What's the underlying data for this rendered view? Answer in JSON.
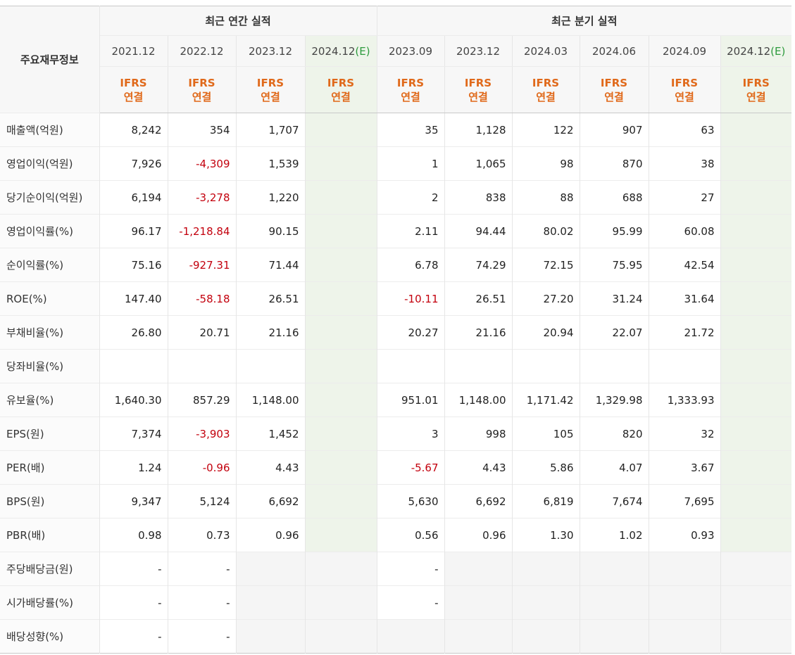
{
  "header": {
    "label_title": "주요재무정보",
    "annual_title": "최근 연간 실적",
    "quarter_title": "최근 분기 실적",
    "annual_periods": [
      "2021.12",
      "2022.12",
      "2023.12",
      "2024.12"
    ],
    "quarter_periods": [
      "2023.09",
      "2023.12",
      "2024.03",
      "2024.06",
      "2024.09",
      "2024.12"
    ],
    "estimate_mark": "(E)",
    "ifrs_line1": "IFRS",
    "ifrs_line2": "연결"
  },
  "rows": [
    {
      "label": "매출액(억원)",
      "annual": [
        "8,242",
        "354",
        "1,707",
        ""
      ],
      "quarter": [
        "35",
        "1,128",
        "122",
        "907",
        "63",
        ""
      ]
    },
    {
      "label": "영업이익(억원)",
      "annual": [
        "7,926",
        "-4,309",
        "1,539",
        ""
      ],
      "quarter": [
        "1",
        "1,065",
        "98",
        "870",
        "38",
        ""
      ]
    },
    {
      "label": "당기순이익(억원)",
      "annual": [
        "6,194",
        "-3,278",
        "1,220",
        ""
      ],
      "quarter": [
        "2",
        "838",
        "88",
        "688",
        "27",
        ""
      ]
    },
    {
      "label": "영업이익률(%)",
      "annual": [
        "96.17",
        "-1,218.84",
        "90.15",
        ""
      ],
      "quarter": [
        "2.11",
        "94.44",
        "80.02",
        "95.99",
        "60.08",
        ""
      ]
    },
    {
      "label": "순이익률(%)",
      "annual": [
        "75.16",
        "-927.31",
        "71.44",
        ""
      ],
      "quarter": [
        "6.78",
        "74.29",
        "72.15",
        "75.95",
        "42.54",
        ""
      ]
    },
    {
      "label": "ROE(%)",
      "annual": [
        "147.40",
        "-58.18",
        "26.51",
        ""
      ],
      "quarter": [
        "-10.11",
        "26.51",
        "27.20",
        "31.24",
        "31.64",
        ""
      ]
    },
    {
      "label": "부채비율(%)",
      "annual": [
        "26.80",
        "20.71",
        "21.16",
        ""
      ],
      "quarter": [
        "20.27",
        "21.16",
        "20.94",
        "22.07",
        "21.72",
        ""
      ]
    },
    {
      "label": "당좌비율(%)",
      "annual": [
        "",
        "",
        "",
        ""
      ],
      "quarter": [
        "",
        "",
        "",
        "",
        "",
        ""
      ]
    },
    {
      "label": "유보율(%)",
      "annual": [
        "1,640.30",
        "857.29",
        "1,148.00",
        ""
      ],
      "quarter": [
        "951.01",
        "1,148.00",
        "1,171.42",
        "1,329.98",
        "1,333.93",
        ""
      ]
    },
    {
      "label": "EPS(원)",
      "annual": [
        "7,374",
        "-3,903",
        "1,452",
        ""
      ],
      "quarter": [
        "3",
        "998",
        "105",
        "820",
        "32",
        ""
      ]
    },
    {
      "label": "PER(배)",
      "annual": [
        "1.24",
        "-0.96",
        "4.43",
        ""
      ],
      "quarter": [
        "-5.67",
        "4.43",
        "5.86",
        "4.07",
        "3.67",
        ""
      ]
    },
    {
      "label": "BPS(원)",
      "annual": [
        "9,347",
        "5,124",
        "6,692",
        ""
      ],
      "quarter": [
        "5,630",
        "6,692",
        "6,819",
        "7,674",
        "7,695",
        ""
      ]
    },
    {
      "label": "PBR(배)",
      "annual": [
        "0.98",
        "0.73",
        "0.96",
        ""
      ],
      "quarter": [
        "0.56",
        "0.96",
        "1.30",
        "1.02",
        "0.93",
        ""
      ]
    },
    {
      "label": "주당배당금(원)",
      "annual": [
        "-",
        "-",
        "",
        ""
      ],
      "quarter": [
        "-",
        "",
        "",
        "",
        "",
        ""
      ]
    },
    {
      "label": "시가배당률(%)",
      "annual": [
        "-",
        "-",
        "",
        ""
      ],
      "quarter": [
        "-",
        "",
        "",
        "",
        "",
        ""
      ]
    },
    {
      "label": "배당성향(%)",
      "annual": [
        "-",
        "-",
        "",
        ""
      ],
      "quarter": [
        "",
        "",
        "",
        "",
        "",
        ""
      ]
    }
  ],
  "colors": {
    "negative": "#c3000d",
    "ifrs": "#e0691a",
    "estimate_mark": "#2e9b3e",
    "estimate_bg": "#eef4ea"
  }
}
